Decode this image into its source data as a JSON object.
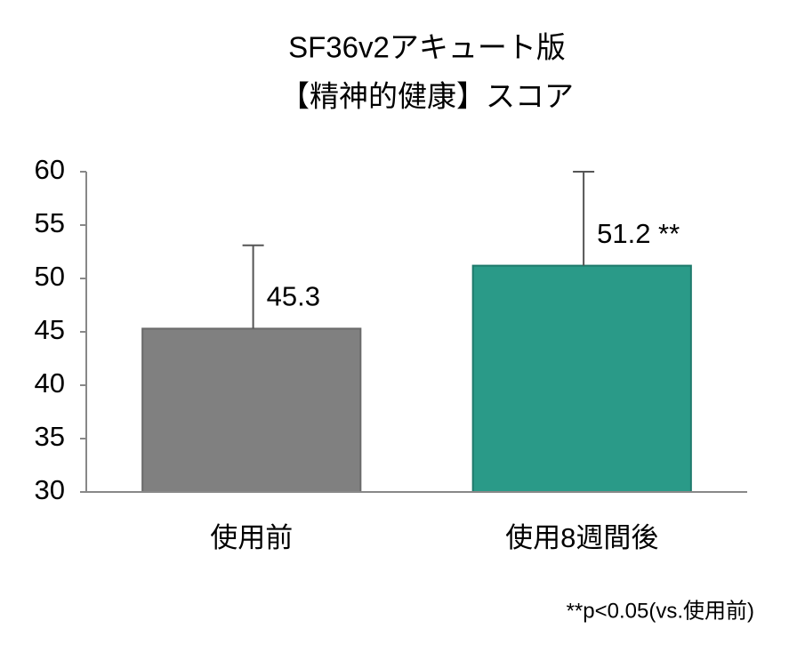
{
  "chart_data": {
    "type": "bar",
    "title": "SF36v2アキュート版",
    "subtitle": "【精神的健康】スコア",
    "categories": [
      "使用前",
      "使用8週間後"
    ],
    "values": [
      45.3,
      51.2
    ],
    "value_labels": [
      "45.3",
      "51.2 **"
    ],
    "errors": [
      7.8,
      8.8
    ],
    "colors": [
      "#808080",
      "#2a9a88"
    ],
    "ylim": [
      30,
      60
    ],
    "yticks": [
      30,
      35,
      40,
      45,
      50,
      55,
      60
    ],
    "grid": false,
    "annotation": "**p<0.05(vs.使用前)"
  }
}
